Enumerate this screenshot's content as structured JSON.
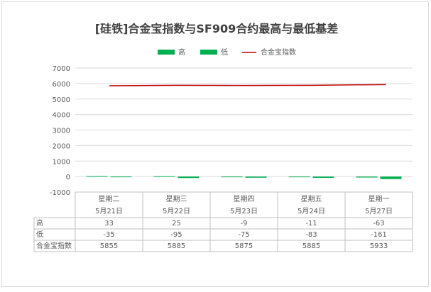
{
  "chart_data": {
    "type": "bar",
    "title": "[硅铁]合金宝指数与SF909合约最高与最低基差",
    "categories": [
      "星期二",
      "星期三",
      "星期四",
      "星期五",
      "星期一"
    ],
    "dates": [
      "5月21日",
      "5月22日",
      "5月23日",
      "5月24日",
      "5月27日"
    ],
    "series": [
      {
        "name": "高",
        "type": "bar",
        "color": "#00b050",
        "values": [
          33,
          25,
          -9,
          -11,
          -63
        ]
      },
      {
        "name": "低",
        "type": "bar",
        "color": "#00b050",
        "values": [
          -35,
          -95,
          -75,
          -83,
          -161
        ]
      },
      {
        "name": "合金宝指数",
        "type": "line",
        "color": "#c00000",
        "values": [
          5855,
          5885,
          5875,
          5885,
          5933
        ]
      }
    ],
    "ylim": [
      -1000,
      7000
    ],
    "yticks": [
      7000,
      6000,
      5000,
      4000,
      3000,
      2000,
      1000,
      0,
      -1000
    ],
    "grid": true,
    "legend_position": "top",
    "data_table": true
  }
}
